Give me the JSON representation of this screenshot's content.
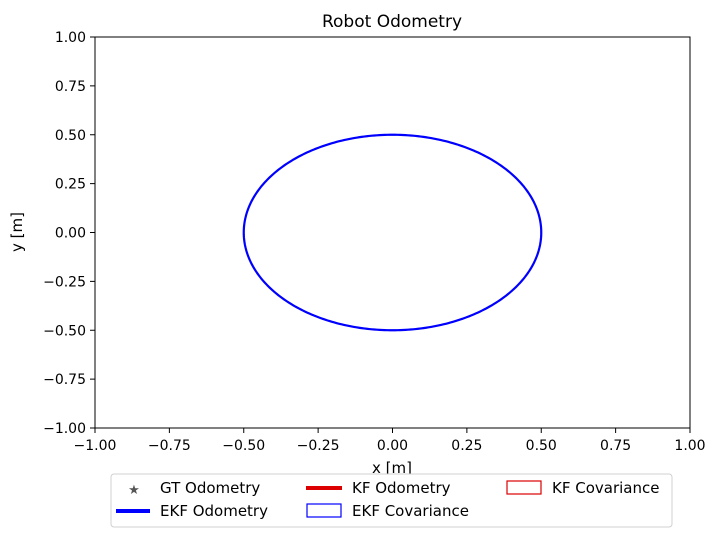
{
  "chart_data": {
    "type": "line",
    "title": "Robot Odometry",
    "xlabel": "x [m]",
    "ylabel": "y [m]",
    "xlim": [
      -1.0,
      1.0
    ],
    "ylim": [
      -1.0,
      1.0
    ],
    "xticks": [
      -1.0,
      -0.75,
      -0.5,
      -0.25,
      0.0,
      0.25,
      0.5,
      0.75,
      1.0
    ],
    "yticks": [
      -1.0,
      -0.75,
      -0.5,
      -0.25,
      0.0,
      0.25,
      0.5,
      0.75,
      1.0
    ],
    "xtick_labels": [
      "−1.00",
      "−0.75",
      "−0.50",
      "−0.25",
      "0.00",
      "0.25",
      "0.50",
      "0.75",
      "1.00"
    ],
    "ytick_labels": [
      "−1.00",
      "−0.75",
      "−0.50",
      "−0.25",
      "0.00",
      "0.25",
      "0.50",
      "0.75",
      "1.00"
    ],
    "grid": false,
    "legend_position": "bottom-center",
    "series": [
      {
        "name": "GT Odometry",
        "style": "star-marker",
        "color": "#555555",
        "points": []
      },
      {
        "name": "EKF Odometry",
        "style": "line",
        "color": "#0000ff",
        "shape": "circle",
        "center": [
          0.0,
          0.0
        ],
        "radius": 0.5
      },
      {
        "name": "KF Odometry",
        "style": "line",
        "color": "#dd0000",
        "points": []
      },
      {
        "name": "EKF Covariance",
        "style": "patch",
        "color": "#0000ff"
      },
      {
        "name": "KF Covariance",
        "style": "patch",
        "color": "#dd0000"
      }
    ]
  }
}
